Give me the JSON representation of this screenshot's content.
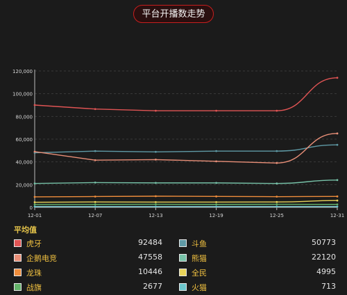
{
  "header": {
    "title": "平台开播数走势"
  },
  "chart_data": {
    "type": "line",
    "x": [
      "12-01",
      "12-07",
      "12-13",
      "12-19",
      "12-25",
      "12-31"
    ],
    "ylim": [
      0,
      120000
    ],
    "yticks": [
      "0",
      "20,000",
      "40,000",
      "60,000",
      "80,000",
      "100,000",
      "120,000"
    ],
    "grid": true,
    "series": [
      {
        "name": "虎牙",
        "color": "#e05454",
        "values": [
          90000,
          86500,
          85000,
          85000,
          85000,
          114000
        ]
      },
      {
        "name": "斗鱼",
        "color": "#5f9aa6",
        "values": [
          48000,
          49500,
          48800,
          49500,
          49500,
          55000
        ]
      },
      {
        "name": "企鹅电竞",
        "color": "#e98f78",
        "values": [
          49000,
          41500,
          42000,
          40500,
          39000,
          65000
        ]
      },
      {
        "name": "熊猫",
        "color": "#77c2a8",
        "values": [
          21000,
          21800,
          21500,
          21500,
          21000,
          24000
        ]
      },
      {
        "name": "龙珠",
        "color": "#ef8d3c",
        "values": [
          9200,
          9500,
          9800,
          9600,
          9400,
          9600
        ]
      },
      {
        "name": "全民",
        "color": "#e8d35a",
        "values": [
          4500,
          4700,
          4600,
          4600,
          4700,
          6000
        ]
      },
      {
        "name": "战旗",
        "color": "#64b36a",
        "values": [
          2500,
          2600,
          2700,
          2600,
          2700,
          2600
        ]
      },
      {
        "name": "火猫",
        "color": "#6cc6cc",
        "values": [
          700,
          700,
          700,
          700,
          720,
          700
        ]
      }
    ]
  },
  "legend": {
    "heading": "平均值",
    "items": [
      {
        "name": "虎牙",
        "value": "92484",
        "color": "#e05454"
      },
      {
        "name": "斗鱼",
        "value": "50773",
        "color": "#5f9aa6"
      },
      {
        "name": "企鹅电竞",
        "value": "47558",
        "color": "#e98f78"
      },
      {
        "name": "熊猫",
        "value": "22120",
        "color": "#77c2a8"
      },
      {
        "name": "龙珠",
        "value": "10446",
        "color": "#ef8d3c"
      },
      {
        "name": "全民",
        "value": "4995",
        "color": "#e8d35a"
      },
      {
        "name": "战旗",
        "value": "2677",
        "color": "#64b36a"
      },
      {
        "name": "火猫",
        "value": "713",
        "color": "#6cc6cc"
      }
    ]
  }
}
